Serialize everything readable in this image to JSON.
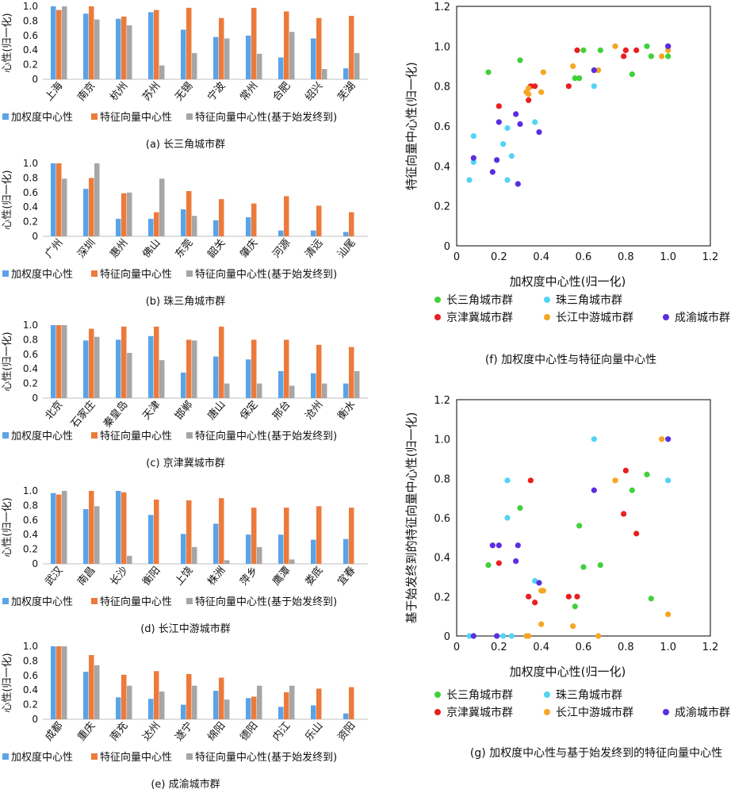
{
  "colors": {
    "weighted": "#5ba3e6",
    "eigen": "#ed7a3b",
    "eigen_od": "#a6a6a6",
    "yrd": "#3fd13a",
    "prd": "#52d4f5",
    "bth": "#e8201f",
    "mid": "#f6a623",
    "cy": "#5a2ee0"
  },
  "bar_legend": {
    "weighted": "加权度中心性",
    "eigen": "特征向量中心性",
    "eigen_od": "特征向量中心性(基于始发终到)"
  },
  "bar_ylabel": "心性(归一化)",
  "bar_ytick_labels": [
    "0",
    "0.2",
    "0.4",
    "0.6",
    "0.8",
    "1.0"
  ],
  "scatter_legend": [
    "长三角城市群",
    "珠三角城市群",
    "京津冀城市群",
    "长江中游城市群",
    "成渝城市群"
  ],
  "chart_data": [
    {
      "type": "bar",
      "title": "(a) 长三角城市群",
      "ylabel": "心性(归一化)",
      "ylim": [
        0,
        1.0
      ],
      "categories": [
        "上海",
        "南京",
        "杭州",
        "苏州",
        "无锡",
        "宁波",
        "常州",
        "合肥",
        "绍兴",
        "芜湖"
      ],
      "series": [
        {
          "name": "加权度中心性",
          "values": [
            1.0,
            0.9,
            0.83,
            0.92,
            0.68,
            0.58,
            0.6,
            0.3,
            0.56,
            0.15
          ]
        },
        {
          "name": "特征向量中心性",
          "values": [
            0.95,
            1.0,
            0.86,
            0.95,
            0.98,
            0.84,
            0.98,
            0.93,
            0.84,
            0.87
          ]
        },
        {
          "name": "特征向量中心性(基于始发终到)",
          "values": [
            1.0,
            0.82,
            0.74,
            0.19,
            0.36,
            0.56,
            0.35,
            0.65,
            0.14,
            0.36
          ]
        }
      ]
    },
    {
      "type": "bar",
      "title": "(b) 珠三角城市群",
      "ylabel": "心性(归一化)",
      "ylim": [
        0,
        1.0
      ],
      "categories": [
        "广州",
        "深圳",
        "惠州",
        "佛山",
        "东莞",
        "韶关",
        "肇庆",
        "河源",
        "清远",
        "汕尾"
      ],
      "series": [
        {
          "name": "加权度中心性",
          "values": [
            1.0,
            0.65,
            0.24,
            0.24,
            0.37,
            0.22,
            0.26,
            0.08,
            0.08,
            0.06
          ]
        },
        {
          "name": "特征向量中心性",
          "values": [
            1.0,
            0.8,
            0.59,
            0.33,
            0.62,
            0.51,
            0.45,
            0.55,
            0.42,
            0.33
          ]
        },
        {
          "name": "特征向量中心性(基于始发终到)",
          "values": [
            0.79,
            1.0,
            0.6,
            0.79,
            0.28,
            0.0,
            0.0,
            0.0,
            0.0,
            0.0
          ]
        }
      ]
    },
    {
      "type": "bar",
      "title": "(c) 京津冀城市群",
      "ylabel": "心性(归一化)",
      "ylim": [
        0,
        1.0
      ],
      "categories": [
        "北京",
        "石家庄",
        "秦皇岛",
        "天津",
        "邯郸",
        "唐山",
        "保定",
        "邢台",
        "沧州",
        "衡水"
      ],
      "series": [
        {
          "name": "加权度中心性",
          "values": [
            1.0,
            0.79,
            0.8,
            0.85,
            0.35,
            0.57,
            0.53,
            0.37,
            0.34,
            0.2
          ]
        },
        {
          "name": "特征向量中心性",
          "values": [
            1.0,
            0.95,
            0.98,
            0.98,
            0.8,
            0.98,
            0.8,
            0.8,
            0.73,
            0.7
          ]
        },
        {
          "name": "特征向量中心性(基于始发终到)",
          "values": [
            1.0,
            0.84,
            0.62,
            0.52,
            0.79,
            0.2,
            0.2,
            0.17,
            0.2,
            0.37
          ]
        }
      ]
    },
    {
      "type": "bar",
      "title": "(d) 长江中游城市群",
      "ylabel": "心性(归一化)",
      "ylim": [
        0,
        1.0
      ],
      "categories": [
        "武汉",
        "南昌",
        "长沙",
        "衡阳",
        "上饶",
        "株洲",
        "萍乡",
        "鹰潭",
        "娄底",
        "宜春"
      ],
      "series": [
        {
          "name": "加权度中心性",
          "values": [
            0.97,
            0.75,
            1.0,
            0.67,
            0.41,
            0.55,
            0.4,
            0.4,
            0.33,
            0.34
          ]
        },
        {
          "name": "特征向量中心性",
          "values": [
            0.95,
            1.0,
            0.98,
            0.88,
            0.87,
            0.9,
            0.77,
            0.77,
            0.79,
            0.77
          ]
        },
        {
          "name": "特征向量中心性(基于始发终到)",
          "values": [
            1.0,
            0.79,
            0.11,
            0.0,
            0.23,
            0.05,
            0.23,
            0.06,
            0.0,
            0.0
          ]
        }
      ]
    },
    {
      "type": "bar",
      "title": "(e) 成渝城市群",
      "ylabel": "心性(归一化)",
      "ylim": [
        0,
        1.0
      ],
      "categories": [
        "成都",
        "重庆",
        "南充",
        "达州",
        "遂宁",
        "绵阳",
        "德阳",
        "内江",
        "乐山",
        "资阳"
      ],
      "series": [
        {
          "name": "加权度中心性",
          "values": [
            1.0,
            0.65,
            0.3,
            0.28,
            0.2,
            0.39,
            0.29,
            0.17,
            0.19,
            0.08
          ]
        },
        {
          "name": "特征向量中心性",
          "values": [
            1.0,
            0.88,
            0.61,
            0.66,
            0.62,
            0.57,
            0.31,
            0.37,
            0.42,
            0.44
          ]
        },
        {
          "name": "特征向量中心性(基于始发终到)",
          "values": [
            1.0,
            0.74,
            0.46,
            0.38,
            0.46,
            0.27,
            0.46,
            0.46,
            0.0,
            0.0
          ]
        }
      ]
    },
    {
      "type": "scatter",
      "title": "(f) 加权度中心性与特征向量中心性",
      "xlabel": "加权度中心性(归一化)",
      "ylabel": "特征向量中心性(归一化)",
      "xlim": [
        0,
        1.2
      ],
      "ylim": [
        0,
        1.2
      ],
      "xticks": [
        "0",
        "0.2",
        "0.4",
        "0.6",
        "0.8",
        "1.0",
        "1.2"
      ],
      "yticks": [
        "0",
        "0.2",
        "0.4",
        "0.6",
        "0.8",
        "1.0",
        "1.2"
      ],
      "series": [
        {
          "name": "长三角城市群",
          "color_key": "yrd",
          "points": [
            [
              1.0,
              0.95
            ],
            [
              0.9,
              1.0
            ],
            [
              0.83,
              0.86
            ],
            [
              0.92,
              0.95
            ],
            [
              0.68,
              0.98
            ],
            [
              0.58,
              0.84
            ],
            [
              0.6,
              0.98
            ],
            [
              0.3,
              0.93
            ],
            [
              0.56,
              0.84
            ],
            [
              0.15,
              0.87
            ]
          ]
        },
        {
          "name": "珠三角城市群",
          "color_key": "prd",
          "points": [
            [
              1.0,
              1.0
            ],
            [
              0.65,
              0.8
            ],
            [
              0.24,
              0.59
            ],
            [
              0.24,
              0.33
            ],
            [
              0.37,
              0.62
            ],
            [
              0.22,
              0.51
            ],
            [
              0.26,
              0.45
            ],
            [
              0.08,
              0.55
            ],
            [
              0.08,
              0.42
            ],
            [
              0.06,
              0.33
            ]
          ]
        },
        {
          "name": "京津冀城市群",
          "color_key": "bth",
          "points": [
            [
              1.0,
              1.0
            ],
            [
              0.79,
              0.95
            ],
            [
              0.8,
              0.98
            ],
            [
              0.85,
              0.98
            ],
            [
              0.35,
              0.8
            ],
            [
              0.57,
              0.98
            ],
            [
              0.53,
              0.8
            ],
            [
              0.37,
              0.8
            ],
            [
              0.34,
              0.73
            ],
            [
              0.2,
              0.7
            ]
          ]
        },
        {
          "name": "长江中游城市群",
          "color_key": "mid",
          "points": [
            [
              0.97,
              0.95
            ],
            [
              0.75,
              1.0
            ],
            [
              1.0,
              0.98
            ],
            [
              0.67,
              0.88
            ],
            [
              0.41,
              0.87
            ],
            [
              0.55,
              0.9
            ],
            [
              0.4,
              0.77
            ],
            [
              0.34,
              0.79
            ],
            [
              0.33,
              0.77
            ],
            [
              0.34,
              0.76
            ]
          ]
        },
        {
          "name": "成渝城市群",
          "color_key": "cy",
          "points": [
            [
              1.0,
              1.0
            ],
            [
              0.65,
              0.88
            ],
            [
              0.3,
              0.61
            ],
            [
              0.28,
              0.66
            ],
            [
              0.2,
              0.62
            ],
            [
              0.39,
              0.57
            ],
            [
              0.29,
              0.31
            ],
            [
              0.17,
              0.37
            ],
            [
              0.19,
              0.43
            ],
            [
              0.08,
              0.44
            ]
          ]
        }
      ]
    },
    {
      "type": "scatter",
      "title": "(g) 加权度中心性与基于始发终到的特征向量中心性",
      "xlabel": "加权度中心性(归一化)",
      "ylabel": "基于始发终到的特征向量中心性(归一化)",
      "xlim": [
        0,
        1.2
      ],
      "ylim": [
        0,
        1.2
      ],
      "xticks": [
        "0",
        "0.2",
        "0.4",
        "0.6",
        "0.8",
        "1.0",
        "1.2"
      ],
      "yticks": [
        "0",
        "0.2",
        "0.4",
        "0.6",
        "0.8",
        "1.0",
        "1.2"
      ],
      "series": [
        {
          "name": "长三角城市群",
          "color_key": "yrd",
          "points": [
            [
              0.9,
              0.82
            ],
            [
              0.83,
              0.74
            ],
            [
              0.3,
              0.65
            ],
            [
              0.58,
              0.56
            ],
            [
              0.6,
              0.35
            ],
            [
              0.68,
              0.36
            ],
            [
              0.15,
              0.36
            ],
            [
              0.56,
              0.15
            ],
            [
              0.92,
              0.19
            ]
          ]
        },
        {
          "name": "珠三角城市群",
          "color_key": "prd",
          "points": [
            [
              0.65,
              1.0
            ],
            [
              1.0,
              0.79
            ],
            [
              0.24,
              0.79
            ],
            [
              0.24,
              0.6
            ],
            [
              0.37,
              0.28
            ],
            [
              0.22,
              0.0
            ],
            [
              0.26,
              0.0
            ],
            [
              0.08,
              0.0
            ],
            [
              0.06,
              0.0
            ]
          ]
        },
        {
          "name": "京津冀城市群",
          "color_key": "bth",
          "points": [
            [
              0.35,
              0.79
            ],
            [
              0.8,
              0.84
            ],
            [
              0.79,
              0.62
            ],
            [
              0.85,
              0.52
            ],
            [
              0.2,
              0.37
            ],
            [
              0.34,
              0.2
            ],
            [
              0.37,
              0.17
            ],
            [
              0.53,
              0.2
            ],
            [
              0.57,
              0.2
            ]
          ]
        },
        {
          "name": "长江中游城市群",
          "color_key": "mid",
          "points": [
            [
              0.97,
              1.0
            ],
            [
              0.75,
              0.79
            ],
            [
              0.41,
              0.23
            ],
            [
              0.4,
              0.23
            ],
            [
              0.4,
              0.06
            ],
            [
              0.55,
              0.05
            ],
            [
              0.33,
              0.0
            ],
            [
              0.34,
              0.0
            ],
            [
              0.67,
              0.0
            ],
            [
              1.0,
              0.11
            ]
          ]
        },
        {
          "name": "成渝城市群",
          "color_key": "cy",
          "points": [
            [
              1.0,
              1.0
            ],
            [
              0.65,
              0.74
            ],
            [
              0.2,
              0.46
            ],
            [
              0.17,
              0.46
            ],
            [
              0.29,
              0.46
            ],
            [
              0.28,
              0.38
            ],
            [
              0.39,
              0.27
            ],
            [
              0.19,
              0.0
            ],
            [
              0.08,
              0.0
            ]
          ]
        }
      ]
    }
  ]
}
